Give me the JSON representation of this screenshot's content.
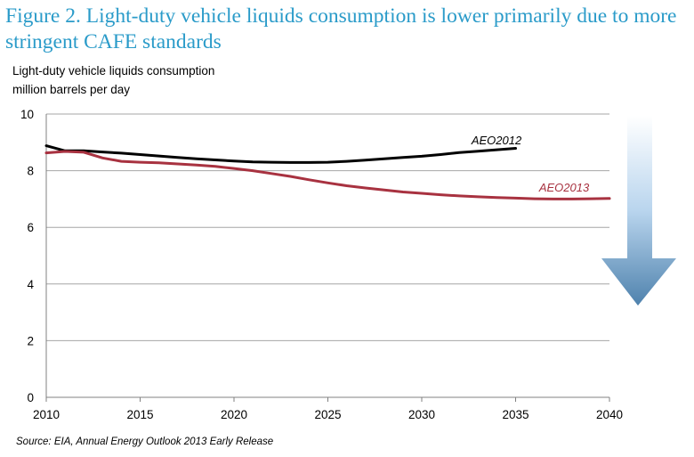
{
  "title": "Figure 2.  Light-duty vehicle liquids consumption is lower primarily due to more stringent CAFE standards",
  "ylabel_line1": "Light-duty vehicle liquids consumption",
  "ylabel_line2": "million barrels per day",
  "source": "Source:  EIA, Annual Energy Outlook 2013 Early Release",
  "colors": {
    "title": "#2a9bc9",
    "aeo2012": "#000000",
    "aeo2013": "#a83240",
    "arrow_top": "#ffffff",
    "arrow_bottom": "#4f82ad"
  },
  "chart_data": {
    "type": "line",
    "xlim": [
      2010,
      2040
    ],
    "ylim": [
      0,
      10
    ],
    "xticks": [
      "2010",
      "2015",
      "2020",
      "2025",
      "2030",
      "2035",
      "2040"
    ],
    "yticks": [
      "0",
      "2",
      "4",
      "6",
      "8",
      "10"
    ],
    "grid": true,
    "legend": "inline labels",
    "annotation": "downward arrow",
    "series": [
      {
        "name": "AEO2012",
        "color": "#000000",
        "x": [
          2010,
          2011,
          2012,
          2013,
          2014,
          2015,
          2016,
          2017,
          2018,
          2019,
          2020,
          2021,
          2022,
          2023,
          2024,
          2025,
          2026,
          2027,
          2028,
          2029,
          2030,
          2031,
          2032,
          2033,
          2034,
          2035
        ],
        "y": [
          8.88,
          8.7,
          8.7,
          8.66,
          8.62,
          8.57,
          8.52,
          8.47,
          8.42,
          8.38,
          8.34,
          8.31,
          8.3,
          8.29,
          8.29,
          8.3,
          8.33,
          8.37,
          8.42,
          8.47,
          8.51,
          8.57,
          8.64,
          8.69,
          8.74,
          8.79
        ]
      },
      {
        "name": "AEO2013",
        "color": "#a83240",
        "x": [
          2010,
          2011,
          2012,
          2013,
          2014,
          2015,
          2016,
          2017,
          2018,
          2019,
          2020,
          2021,
          2022,
          2023,
          2024,
          2025,
          2026,
          2027,
          2028,
          2029,
          2030,
          2031,
          2032,
          2033,
          2034,
          2035,
          2036,
          2037,
          2038,
          2039,
          2040
        ],
        "y": [
          8.63,
          8.68,
          8.65,
          8.45,
          8.33,
          8.3,
          8.28,
          8.24,
          8.2,
          8.15,
          8.08,
          8.0,
          7.9,
          7.8,
          7.68,
          7.57,
          7.47,
          7.39,
          7.32,
          7.25,
          7.2,
          7.15,
          7.11,
          7.08,
          7.05,
          7.03,
          7.01,
          7.0,
          7.0,
          7.01,
          7.02
        ]
      }
    ]
  }
}
